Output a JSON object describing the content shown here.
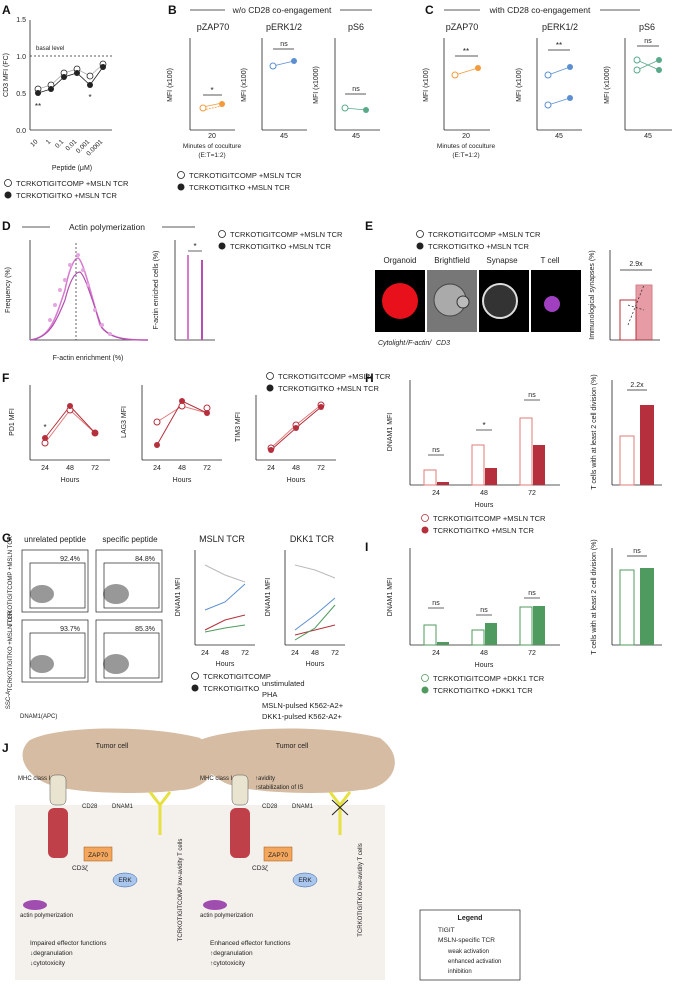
{
  "panels": {
    "A": {
      "letter": "A",
      "ylabel": "CD3 MFI (FC)",
      "xlabel": "Peptide (μM)",
      "yticks": [
        "0.0",
        "0.5",
        "1.0",
        "1.5"
      ],
      "xticks": [
        "10",
        "1",
        "0.1",
        "0.01",
        "0.001",
        "0.0001"
      ],
      "basal": "basal level",
      "sig": [
        "**",
        "*"
      ],
      "legend": [
        "TCRKOTIGITCOMP +MSLN TCR",
        "TCRKOTIGITKO +MSLN TCR"
      ]
    },
    "B": {
      "letter": "B",
      "title": "w/o CD28 co-engagement",
      "subtitles": [
        "pZAP70",
        "pERK1/2",
        "pS6"
      ],
      "ylabels": [
        "MFI (x100)",
        "MFI (x100)",
        "MFI (x1000)"
      ],
      "xticks": [
        "20",
        "45",
        "45"
      ],
      "xlabel": "Minutes of coculture",
      "xlabel2": "(E:T=1:2)",
      "sig": [
        "*",
        "ns",
        "ns"
      ],
      "legend": [
        "TCRKOTIGITCOMP +MSLN TCR",
        "TCRKOTIGITKO +MSLN TCR"
      ]
    },
    "C": {
      "letter": "C",
      "title": "with CD28 co-engagement",
      "subtitles": [
        "pZAP70",
        "pERK1/2",
        "pS6"
      ],
      "ylabels": [
        "MFI (x100)",
        "MFI (x100)",
        "MFI (x1000)"
      ],
      "xticks": [
        "20",
        "45",
        "45"
      ],
      "xlabel": "Minutes of coculture",
      "xlabel2": "(E:T=1:2)",
      "sig": [
        "**",
        "**",
        "ns"
      ]
    },
    "D": {
      "letter": "D",
      "title": "Actin polymerization",
      "ylabel": "Frequency (%)",
      "xlabel": "F-actin enrichment (%)",
      "ylabel2": "F-actin enriched cells (%)",
      "sig": "*",
      "legend": [
        "TCRKOTIGITCOMP +MSLN TCR",
        "TCRKOTIGITKO +MSLN TCR"
      ]
    },
    "E": {
      "letter": "E",
      "legend": [
        "TCRKOTIGITCOMP +MSLN TCR",
        "TCRKOTIGITKO +MSLN TCR"
      ],
      "image_labels": [
        "Organoid",
        "Brightfield",
        "Synapse",
        "T cell"
      ],
      "caption": [
        "Cytolight",
        "/F-actin/",
        "CD3"
      ],
      "ylabel": "Immunological synapses (%)",
      "fold": "2.9x"
    },
    "F": {
      "letter": "F",
      "ylabels": [
        "PD1 MFI",
        "LAG3 MFI",
        "TIM3 MFI"
      ],
      "xlabel": "Hours",
      "xticks": [
        "24",
        "48",
        "72"
      ],
      "sig": "*",
      "legend": [
        "TCRKOTIGITCOMP +MSLN TCR",
        "TCRKOTIGITKO +MSLN TCR"
      ]
    },
    "G": {
      "letter": "G",
      "flow_titles": [
        "unrelated peptide",
        "specific peptide"
      ],
      "percents": [
        "92.4%",
        "84.8%",
        "93.7%",
        "85.3%"
      ],
      "row_labels": [
        "TCRKOTIGITCOMP +MSLN TCR",
        "TCRKOTIGITKO +MSLN TCR"
      ],
      "axis_y": "SSC-A",
      "axis_x": "DNAM1(APC)",
      "line_titles": [
        "MSLN TCR",
        "DKK1 TCR"
      ],
      "ylabel": "DNAM1 MFI",
      "xlabel": "Hours",
      "legend_lines": [
        "TCRKOTIGITCOMP",
        "TCRKOTIGITKO"
      ],
      "legend_conditions": [
        "unstimulated",
        "PHA",
        "MSLN-pulsed K562-A2+",
        "DKK1-pulsed K562-A2+"
      ]
    },
    "H": {
      "letter": "H",
      "ylabel": "DNAM1 MFI",
      "xlabel": "Hours",
      "sig": [
        "ns",
        "*",
        "ns"
      ],
      "ylabel2": "T cells with at least 2 cell division (%)",
      "fold": "2.2x",
      "legend": [
        "TCRKOTIGITCOMP +MSLN TCR",
        "TCRKOTIGITKO +MSLN TCR"
      ]
    },
    "I": {
      "letter": "I",
      "ylabel": "DNAM1 MFI",
      "xlabel": "Hours",
      "sig": [
        "ns",
        "ns",
        "ns",
        "ns"
      ],
      "ylabel2": "T cells with at least 2 cell division (%)",
      "legend": [
        "TCRKOTIGITCOMP +DKK1 TCR",
        "TCRKOTIGITKO +DKK1 TCR"
      ]
    },
    "J": {
      "letter": "J",
      "tumor": "Tumor cell",
      "mhc": "MHC class I",
      "cd28": "CD28",
      "dnam1": "DNAM1",
      "zap70": "ZAP70",
      "cd3": "CD3ζ",
      "erk": "ERK",
      "actin": "actin polymerization",
      "avidity": [
        "↑avidity",
        "↑stabilization of IS"
      ],
      "left_cell": "TCRKOTIGITCOMP low-avidity T cells",
      "right_cell": "TCRKOTIGITKO low-avidity T cells",
      "left_effects": [
        "Impaired effector functions",
        "↓degranulation",
        "↓cytotoxicity"
      ],
      "right_effects": [
        "Enhanced effector functions",
        "↑degranulation",
        "↑cytotoxicity"
      ],
      "legend_title": "Legend",
      "legend_items": [
        "TIGIT",
        "MSLN-specific TCR",
        "weak activation",
        "enhanced activation",
        "inhibition"
      ]
    }
  },
  "colors": {
    "light_red": "#e07b7b",
    "dark_red": "#b5303c",
    "orange": "#f39a3c",
    "blue": "#5b8fd1",
    "teal": "#5aaa8a",
    "pink": "#d77bd0",
    "green": "#4f9a5e",
    "gray": "#aaaaaa"
  },
  "chart_data": [
    {
      "panel": "A",
      "type": "line",
      "x": [
        "10",
        "1",
        "0.1",
        "0.01",
        "0.001",
        "0.0001"
      ],
      "series": [
        {
          "values": [
            0.55,
            0.6,
            0.75,
            0.8,
            0.72,
            0.88
          ]
        },
        {
          "values": [
            0.5,
            0.55,
            0.7,
            0.75,
            0.6,
            0.85
          ]
        }
      ],
      "ylim": [
        0,
        1.5
      ]
    },
    {
      "panel": "F",
      "type": "line",
      "x": [
        "24",
        "48",
        "72"
      ],
      "series": [
        {
          "values": [
            110,
            200,
            125
          ]
        },
        {
          "values": [
            130,
            230,
            120
          ]
        }
      ]
    },
    {
      "panel": "H",
      "type": "bar",
      "categories": [
        "24",
        "48",
        "72"
      ],
      "series": [
        {
          "values": [
            200,
            800,
            1400
          ]
        },
        {
          "values": [
            30,
            300,
            800
          ]
        }
      ],
      "ylim": [
        0,
        2000
      ]
    },
    {
      "panel": "I",
      "type": "bar",
      "categories": [
        "24",
        "48",
        "72"
      ],
      "series": [
        {
          "values": [
            300,
            250,
            600
          ]
        },
        {
          "values": [
            30,
            350,
            620
          ]
        }
      ],
      "ylim": [
        0,
        2000
      ]
    }
  ]
}
